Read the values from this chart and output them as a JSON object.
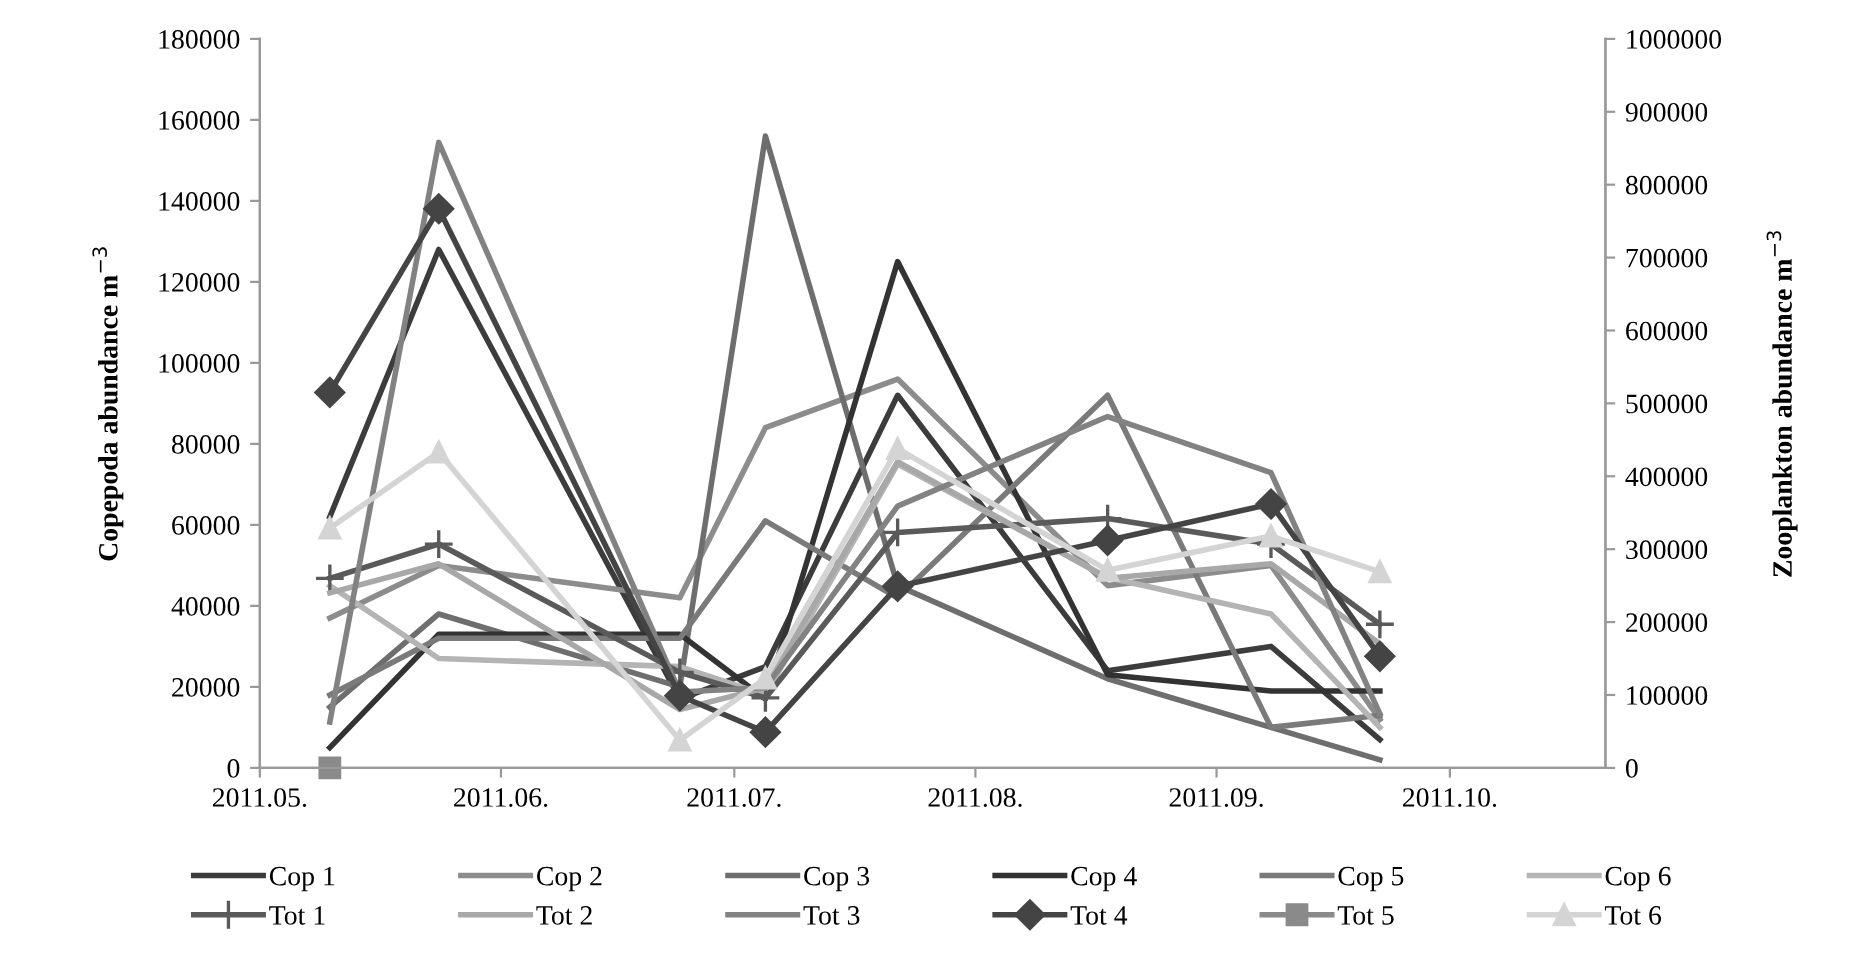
{
  "chart_data": {
    "type": "line",
    "ylabel": "Copepoda abundance m$^{−3}$",
    "y2label": "Zooplankton abundance m$^{−3}$",
    "x": [
      "2011-05-10",
      "2011-05-24",
      "2011-06-24",
      "2011-07-05",
      "2011-07-22",
      "2011-08-18",
      "2011-09-08",
      "2011-09-22"
    ],
    "xlim": [
      "2011-05-01",
      "2011-10-21"
    ],
    "xticks": [
      {
        "value": "2011-05-01",
        "label": "2011.05."
      },
      {
        "value": "2011-06-01",
        "label": "2011.06."
      },
      {
        "value": "2011-07-01",
        "label": "2011.07."
      },
      {
        "value": "2011-08-01",
        "label": "2011.08."
      },
      {
        "value": "2011-09-01",
        "label": "2011.09."
      },
      {
        "value": "2011-10-01",
        "label": "2011.10."
      }
    ],
    "ylim": [
      0,
      180000
    ],
    "yticks": [
      0,
      20000,
      40000,
      60000,
      80000,
      100000,
      120000,
      140000,
      160000,
      180000
    ],
    "y2lim": [
      0,
      1000000
    ],
    "y2ticks": [
      0,
      100000,
      200000,
      300000,
      400000,
      500000,
      600000,
      700000,
      800000,
      900000,
      1000000
    ],
    "legend": "bottom",
    "grid": false,
    "line_style": "solid",
    "series": [
      {
        "name": "Cop 1",
        "color": "#3c3c3c",
        "marker": "none",
        "values": [
          62000,
          128000,
          17000,
          25000,
          92000,
          24000,
          30000,
          7000
        ]
      },
      {
        "name": "Cop 2",
        "color": "#8c8c8c",
        "marker": "none",
        "values": [
          37000,
          50000,
          42000,
          84000,
          96000,
          45000,
          50000,
          12000
        ]
      },
      {
        "name": "Cop 3",
        "color": "#6e6e6e",
        "marker": "none",
        "values": [
          15000,
          38000,
          20000,
          156000,
          45000,
          22000,
          10000,
          2000
        ]
      },
      {
        "name": "Cop 4",
        "color": "#333333",
        "marker": "none",
        "values": [
          5000,
          33000,
          33000,
          17000,
          125000,
          23000,
          19000,
          19000
        ]
      },
      {
        "name": "Cop 5",
        "color": "#7a7a7a",
        "marker": "none",
        "values": [
          18000,
          32000,
          32000,
          61000,
          42000,
          92000,
          10000,
          13000
        ]
      },
      {
        "name": "Cop 6",
        "color": "#b4b4b4",
        "marker": "none",
        "values": [
          45000,
          27000,
          25000,
          18000,
          75000,
          47000,
          38000,
          10000
        ]
      },
      {
        "name": "Tot 1",
        "color": "#5a5a5a",
        "marker": "cross",
        "axis": "y2",
        "values": [
          260000,
          307000,
          131000,
          96000,
          323000,
          342000,
          307000,
          197000
        ]
      },
      {
        "name": "Tot 2",
        "color": "#a8a8a8",
        "marker": "none",
        "axis": "y2",
        "values": [
          240000,
          280000,
          80000,
          110000,
          420000,
          260000,
          280000,
          170000
        ]
      },
      {
        "name": "Tot 3",
        "color": "#828282",
        "marker": "none",
        "axis": "y2",
        "values": [
          63000,
          858000,
          104000,
          110000,
          359000,
          482000,
          405000,
          74000
        ]
      },
      {
        "name": "Tot 4",
        "color": "#444444",
        "marker": "diamond",
        "axis": "y2",
        "values": [
          515000,
          767000,
          99000,
          49000,
          249000,
          312000,
          362000,
          153000
        ]
      },
      {
        "name": "Tot 5",
        "color": "#8a8a8a",
        "marker": "square",
        "axis": "y2",
        "values": [
          0,
          null,
          null,
          null,
          null,
          null,
          null,
          null
        ]
      },
      {
        "name": "Tot 6",
        "color": "#d4d4d4",
        "marker": "triangle",
        "axis": "y2",
        "values": [
          329000,
          433000,
          38000,
          123000,
          438000,
          271000,
          318000,
          269000
        ]
      }
    ]
  }
}
